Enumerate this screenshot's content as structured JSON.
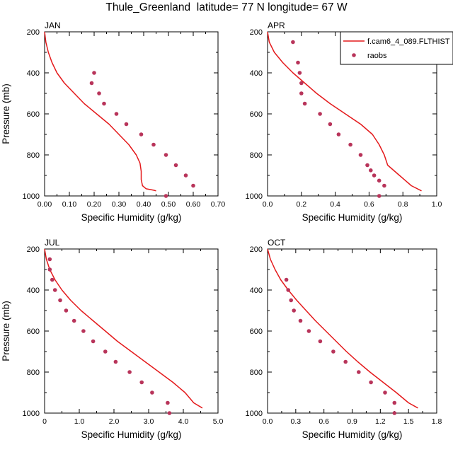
{
  "title": "Thule_Greenland  latitude= 77 N longitude= 67 W",
  "legend": {
    "model": "f.cam6_4_089.FLTHIST",
    "obs": "raobs"
  },
  "colors": {
    "model": "#e41a1c",
    "obs": "#b8345a",
    "axis": "#000000"
  },
  "chart_data": [
    {
      "type": "line",
      "panel": "JAN",
      "xlabel": "Specific Humidity (g/kg)",
      "ylabel": "Pressure (mb)",
      "xlim": [
        0.0,
        0.7
      ],
      "ylim": [
        200,
        1000
      ],
      "y_reversed": true,
      "xticks": [
        "0.00",
        "0.10",
        "0.20",
        "0.30",
        "0.40",
        "0.50",
        "0.60",
        "0.70"
      ],
      "yticks": [
        "200",
        "400",
        "600",
        "800",
        "1000"
      ],
      "series": [
        {
          "name": "f.cam6_4_089.FLTHIST",
          "kind": "line",
          "x": [
            0.0,
            0.005,
            0.015,
            0.03,
            0.05,
            0.08,
            0.12,
            0.16,
            0.21,
            0.26,
            0.3,
            0.34,
            0.37,
            0.385,
            0.39,
            0.39,
            0.395,
            0.41,
            0.44,
            0.45
          ],
          "y": [
            200,
            250,
            300,
            350,
            400,
            450,
            500,
            550,
            600,
            650,
            700,
            750,
            800,
            840,
            880,
            920,
            950,
            965,
            972,
            975
          ]
        },
        {
          "name": "raobs",
          "kind": "scatter",
          "x": [
            0.2,
            0.19,
            0.22,
            0.24,
            0.29,
            0.33,
            0.39,
            0.44,
            0.49,
            0.53,
            0.57,
            0.6,
            0.49
          ],
          "y": [
            400,
            450,
            500,
            550,
            600,
            650,
            700,
            750,
            800,
            850,
            900,
            950,
            1000
          ]
        }
      ]
    },
    {
      "type": "line",
      "panel": "APR",
      "xlabel": "Specific Humidity (g/kg)",
      "ylabel": "",
      "xlim": [
        0.0,
        1.0
      ],
      "ylim": [
        200,
        1000
      ],
      "y_reversed": true,
      "xticks": [
        "0.0",
        "0.2",
        "0.4",
        "0.6",
        "0.8",
        "1.0"
      ],
      "yticks": [
        "200",
        "400",
        "600",
        "800",
        "1000"
      ],
      "legend_position": "top-right",
      "series": [
        {
          "name": "f.cam6_4_089.FLTHIST",
          "kind": "line",
          "x": [
            0.0,
            0.01,
            0.04,
            0.09,
            0.15,
            0.22,
            0.29,
            0.37,
            0.46,
            0.55,
            0.62,
            0.66,
            0.69,
            0.71,
            0.78,
            0.85,
            0.91
          ],
          "y": [
            200,
            250,
            300,
            350,
            400,
            450,
            500,
            550,
            600,
            650,
            700,
            750,
            800,
            850,
            900,
            950,
            975
          ]
        },
        {
          "name": "raobs",
          "kind": "scatter",
          "x": [
            0.15,
            0.18,
            0.19,
            0.2,
            0.2,
            0.22,
            0.31,
            0.37,
            0.42,
            0.49,
            0.55,
            0.59,
            0.61,
            0.63,
            0.66,
            0.69,
            0.66
          ],
          "y": [
            250,
            350,
            400,
            450,
            500,
            550,
            600,
            650,
            700,
            750,
            800,
            850,
            875,
            900,
            925,
            950,
            1000
          ]
        }
      ]
    },
    {
      "type": "line",
      "panel": "JUL",
      "xlabel": "Specific Humidity (g/kg)",
      "ylabel": "Pressure (mb)",
      "xlim": [
        0.0,
        5.0
      ],
      "ylim": [
        200,
        1000
      ],
      "y_reversed": true,
      "xticks": [
        "0",
        "1.0",
        "2.0",
        "3.0",
        "4.0",
        "5.0"
      ],
      "yticks": [
        "200",
        "400",
        "600",
        "800",
        "1000"
      ],
      "series": [
        {
          "name": "f.cam6_4_089.FLTHIST",
          "kind": "line",
          "x": [
            0.0,
            0.05,
            0.15,
            0.3,
            0.5,
            0.75,
            1.05,
            1.4,
            1.75,
            2.1,
            2.5,
            2.9,
            3.3,
            3.7,
            4.05,
            4.3,
            4.55
          ],
          "y": [
            200,
            250,
            300,
            350,
            400,
            450,
            500,
            550,
            600,
            650,
            700,
            750,
            800,
            850,
            900,
            950,
            975
          ]
        },
        {
          "name": "raobs",
          "kind": "scatter",
          "x": [
            0.15,
            0.15,
            0.22,
            0.3,
            0.45,
            0.62,
            0.85,
            1.12,
            1.4,
            1.75,
            2.05,
            2.45,
            2.8,
            3.1,
            3.55,
            3.6
          ],
          "y": [
            250,
            300,
            350,
            400,
            450,
            500,
            550,
            600,
            650,
            700,
            750,
            800,
            850,
            900,
            950,
            1000
          ]
        }
      ]
    },
    {
      "type": "line",
      "panel": "OCT",
      "xlabel": "Specific Humidity (g/kg)",
      "ylabel": "",
      "xlim": [
        0.0,
        1.8
      ],
      "ylim": [
        200,
        1000
      ],
      "y_reversed": true,
      "xticks": [
        "0.0",
        "0.3",
        "0.6",
        "0.9",
        "1.2",
        "1.5",
        "1.8"
      ],
      "yticks": [
        "200",
        "400",
        "600",
        "800",
        "1000"
      ],
      "series": [
        {
          "name": "f.cam6_4_089.FLTHIST",
          "kind": "line",
          "x": [
            0.0,
            0.03,
            0.08,
            0.14,
            0.22,
            0.31,
            0.41,
            0.51,
            0.62,
            0.73,
            0.84,
            0.96,
            1.09,
            1.23,
            1.37,
            1.5,
            1.6
          ],
          "y": [
            200,
            250,
            300,
            350,
            400,
            450,
            500,
            550,
            600,
            650,
            700,
            750,
            800,
            850,
            900,
            950,
            975
          ]
        },
        {
          "name": "raobs",
          "kind": "scatter",
          "x": [
            0.2,
            0.22,
            0.25,
            0.28,
            0.35,
            0.44,
            0.56,
            0.7,
            0.83,
            0.97,
            1.1,
            1.25,
            1.35,
            1.35
          ],
          "y": [
            350,
            400,
            450,
            500,
            550,
            600,
            650,
            700,
            750,
            800,
            850,
            900,
            950,
            1000
          ]
        }
      ]
    }
  ]
}
